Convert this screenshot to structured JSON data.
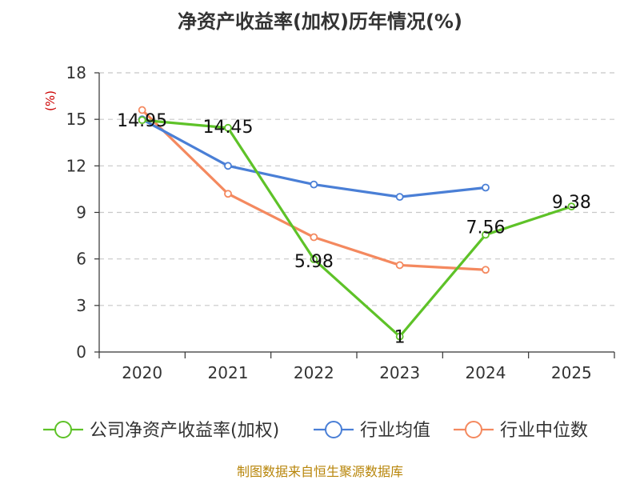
{
  "chart_data": {
    "type": "line",
    "title": "净资产收益率(加权)历年情况(%)",
    "ylabel": "(%)",
    "xlabel": "",
    "categories": [
      "2020",
      "2021",
      "2022",
      "2023",
      "2024",
      "2025"
    ],
    "ylim": [
      0,
      18
    ],
    "yticks": [
      0,
      3,
      6,
      9,
      12,
      15,
      18
    ],
    "grid": true,
    "legend_position": "bottom",
    "series": [
      {
        "name": "公司净资产收益率(加权)",
        "color": "#5ec228",
        "values": [
          14.95,
          14.45,
          5.98,
          1,
          7.56,
          9.38
        ],
        "labels": [
          "14.95",
          "14.45",
          "5.98",
          "1",
          "7.56",
          "9.38"
        ]
      },
      {
        "name": "行业均值",
        "color": "#4a7fd6",
        "values": [
          15.0,
          12.0,
          10.8,
          10.0,
          10.6,
          null
        ]
      },
      {
        "name": "行业中位数",
        "color": "#f4895f",
        "values": [
          15.6,
          10.2,
          7.4,
          5.6,
          5.3,
          null
        ]
      }
    ],
    "source": "制图数据来自恒生聚源数据库"
  }
}
